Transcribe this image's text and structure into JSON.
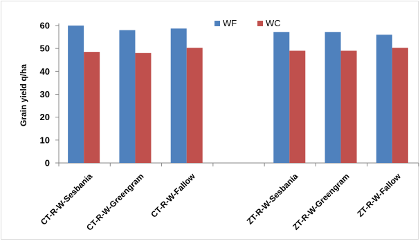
{
  "chart_data": {
    "type": "bar",
    "title": "",
    "xlabel": "",
    "ylabel": "Grain yield q/ha",
    "ylim": [
      0,
      60
    ],
    "yticks": [
      0,
      10,
      20,
      30,
      40,
      50,
      60
    ],
    "categories": [
      "CT-R-W-Sesbania",
      "CT-R-W-Greengram",
      "CT-R-W-Fallow",
      "",
      "ZT-R-W-Sesbania",
      "ZT-R-W-Greengram",
      "ZT-R-W-Fallow"
    ],
    "series": [
      {
        "name": "WF",
        "color": "#4f81bd",
        "values": [
          60.0,
          58.0,
          58.7,
          null,
          57.2,
          57.2,
          56.0
        ]
      },
      {
        "name": "WC",
        "color": "#c0504d",
        "values": [
          48.5,
          48.0,
          50.3,
          null,
          49.0,
          49.0,
          50.3
        ]
      }
    ],
    "legend_position": "top-center",
    "grid": false
  }
}
